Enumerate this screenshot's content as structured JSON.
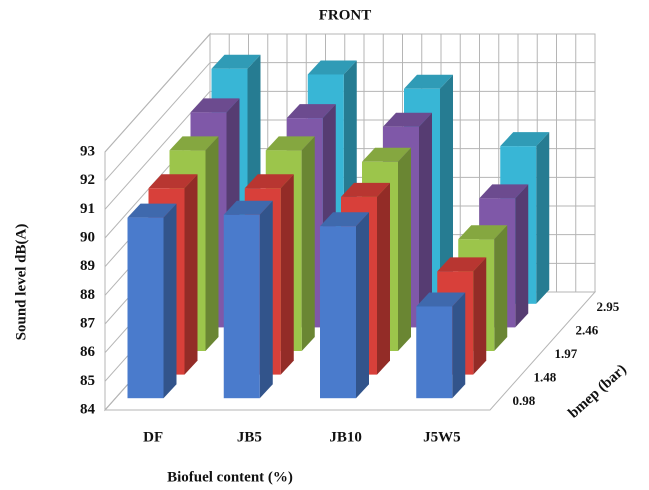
{
  "chart_data": {
    "type": "bar3d",
    "title": "FRONT",
    "x_label": "Biofuel content (%)",
    "y_label": "Sound level dB(A)",
    "z_label": "bmep (bar)",
    "categories": [
      "DF",
      "JB5",
      "JB10",
      "J5W5"
    ],
    "series": [
      {
        "name": "0.98",
        "color": "#4a7bcc",
        "values": [
          90.3,
          90.4,
          90.0,
          87.2
        ]
      },
      {
        "name": "1.48",
        "color": "#d8403a",
        "values": [
          90.5,
          90.5,
          90.2,
          87.6
        ]
      },
      {
        "name": "1.97",
        "color": "#9cc54b",
        "values": [
          91.0,
          91.0,
          90.6,
          87.9
        ]
      },
      {
        "name": "2.46",
        "color": "#7f58a8",
        "values": [
          91.5,
          91.3,
          91.0,
          88.5
        ]
      },
      {
        "name": "2.95",
        "color": "#38b6d6",
        "values": [
          92.2,
          92.0,
          91.5,
          89.5
        ]
      }
    ],
    "ylim": [
      84,
      93
    ],
    "yticks": [
      84,
      85,
      86,
      87,
      88,
      89,
      90,
      91,
      92,
      93
    ],
    "grid": true
  }
}
